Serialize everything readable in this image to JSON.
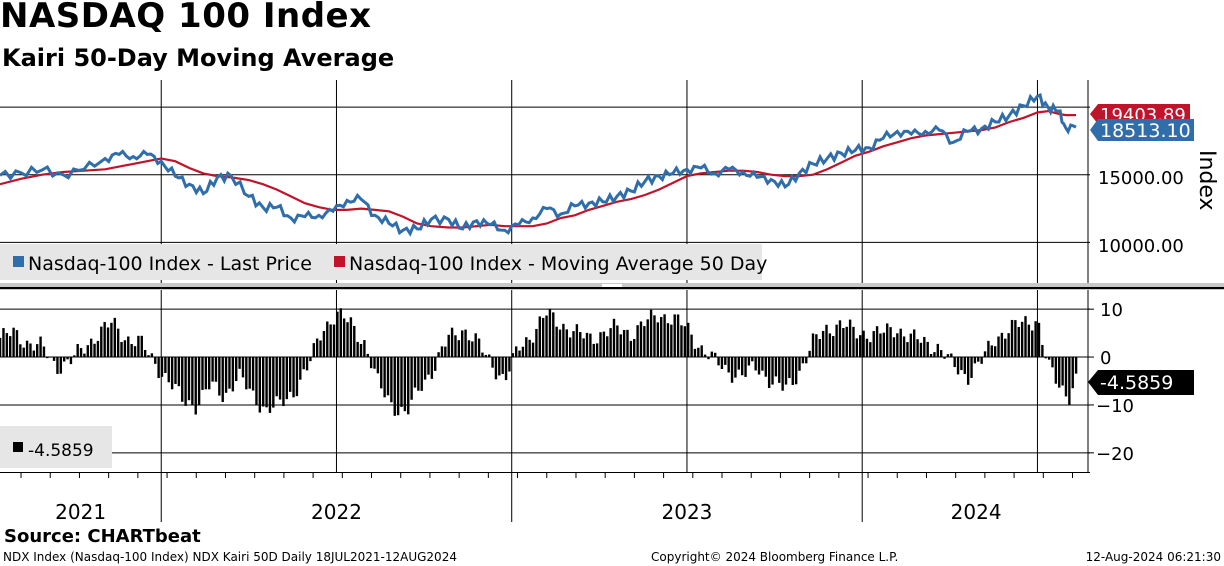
{
  "title": "NASDAQ 100 Index",
  "subtitle": "Kairi 50-Day Moving Average",
  "source": "Source: CHARTbeat",
  "footer": {
    "left": "NDX Index (Nasdaq-100 Index) NDX Kairi 50D  Daily 18JUL2021-12AUG2024",
    "middle": "Copyright© 2024 Bloomberg Finance L.P.",
    "right": "12-Aug-2024 06:21:30"
  },
  "colors": {
    "price": "#2f6eab",
    "ma": "#c0142a",
    "kairi": "#000000",
    "grid": "#000000",
    "legend_bg": "#e6e6e6"
  },
  "chart_data": [
    {
      "type": "line",
      "title": "NASDAQ 100 Index",
      "ylabel": "Index",
      "ylim": [
        7000,
        22000
      ],
      "y_ticks": [
        "10000.00",
        "15000.00"
      ],
      "x_labels": [
        "2021",
        "2022",
        "2023",
        "2024"
      ],
      "x_range": [
        2021.54,
        2024.61
      ],
      "legend": [
        "Nasdaq-100 Index - Last Price",
        "Nasdaq-100 Index - Moving Average 50 Day"
      ],
      "value_labels": {
        "ma": "19403.89",
        "price": "18513.10"
      },
      "series": [
        {
          "name": "Nasdaq-100 Index - Last Price",
          "x": [
            2021.54,
            2021.6,
            2021.66,
            2021.72,
            2021.78,
            2021.84,
            2021.88,
            2021.92,
            2021.96,
            2022.0,
            2022.04,
            2022.08,
            2022.12,
            2022.16,
            2022.2,
            2022.25,
            2022.29,
            2022.33,
            2022.37,
            2022.41,
            2022.45,
            2022.49,
            2022.53,
            2022.57,
            2022.61,
            2022.65,
            2022.69,
            2022.73,
            2022.77,
            2022.82,
            2022.86,
            2022.9,
            2022.94,
            2022.98,
            2023.02,
            2023.06,
            2023.1,
            2023.14,
            2023.18,
            2023.22,
            2023.26,
            2023.3,
            2023.34,
            2023.38,
            2023.42,
            2023.46,
            2023.5,
            2023.54,
            2023.58,
            2023.62,
            2023.66,
            2023.7,
            2023.74,
            2023.78,
            2023.82,
            2023.86,
            2023.9,
            2023.94,
            2023.98,
            2024.02,
            2024.06,
            2024.1,
            2024.14,
            2024.18,
            2024.22,
            2024.26,
            2024.3,
            2024.34,
            2024.38,
            2024.42,
            2024.46,
            2024.5,
            2024.53,
            2024.56,
            2024.58,
            2024.61
          ],
          "values": [
            14950,
            15150,
            15350,
            15000,
            15400,
            16200,
            16500,
            16350,
            16500,
            16000,
            14900,
            14300,
            13600,
            14800,
            14900,
            13400,
            12600,
            12600,
            11800,
            11900,
            12000,
            12300,
            13100,
            13200,
            12000,
            11400,
            10900,
            11000,
            11700,
            11700,
            11000,
            11600,
            11300,
            10900,
            11300,
            11800,
            12500,
            12100,
            12700,
            12900,
            13000,
            13400,
            13800,
            14500,
            14900,
            15100,
            15400,
            15500,
            15100,
            15400,
            15200,
            14800,
            14650,
            14100,
            15100,
            15800,
            16200,
            16600,
            16800,
            17000,
            17700,
            18200,
            18000,
            18200,
            18300,
            17400,
            18200,
            18400,
            18900,
            19400,
            20100,
            20800,
            20000,
            19700,
            18500,
            18513.1
          ]
        },
        {
          "name": "Nasdaq-100 Index - Moving Average 50 Day",
          "x": [
            2021.54,
            2021.6,
            2021.66,
            2021.72,
            2021.78,
            2021.84,
            2021.88,
            2021.92,
            2021.96,
            2022.0,
            2022.04,
            2022.08,
            2022.12,
            2022.16,
            2022.2,
            2022.25,
            2022.29,
            2022.33,
            2022.37,
            2022.41,
            2022.45,
            2022.49,
            2022.53,
            2022.57,
            2022.61,
            2022.65,
            2022.69,
            2022.73,
            2022.77,
            2022.82,
            2022.86,
            2022.9,
            2022.94,
            2022.98,
            2023.02,
            2023.06,
            2023.1,
            2023.14,
            2023.18,
            2023.22,
            2023.26,
            2023.3,
            2023.34,
            2023.38,
            2023.42,
            2023.46,
            2023.5,
            2023.54,
            2023.58,
            2023.62,
            2023.66,
            2023.7,
            2023.74,
            2023.78,
            2023.82,
            2023.86,
            2023.9,
            2023.94,
            2023.98,
            2024.02,
            2024.06,
            2024.1,
            2024.14,
            2024.18,
            2024.22,
            2024.26,
            2024.3,
            2024.34,
            2024.38,
            2024.42,
            2024.46,
            2024.5,
            2024.53,
            2024.56,
            2024.58,
            2024.61
          ],
          "values": [
            14300,
            14700,
            15000,
            15200,
            15300,
            15400,
            15600,
            15800,
            16000,
            16200,
            16000,
            15500,
            15100,
            14900,
            14800,
            14600,
            14300,
            13900,
            13400,
            12900,
            12600,
            12400,
            12400,
            12500,
            12400,
            12300,
            11900,
            11400,
            11200,
            11100,
            11100,
            11200,
            11300,
            11200,
            11200,
            11200,
            11400,
            11800,
            12000,
            12400,
            12700,
            13000,
            13200,
            13500,
            13900,
            14400,
            14900,
            15100,
            15200,
            15300,
            15300,
            15200,
            15000,
            14900,
            14900,
            15000,
            15400,
            15900,
            16400,
            16700,
            17100,
            17400,
            17700,
            17900,
            18000,
            18100,
            18200,
            18300,
            18500,
            18900,
            19200,
            19600,
            19700,
            19500,
            19403.89,
            19403.89
          ]
        }
      ]
    },
    {
      "type": "bar",
      "title": "Kairi 50-Day Moving Average",
      "ylim": [
        -24,
        14
      ],
      "y_ticks": [
        10,
        0,
        -10,
        -20
      ],
      "legend": [
        "-4.5859"
      ],
      "value_label": "-4.5859",
      "x": [
        2021.54,
        2021.58,
        2021.62,
        2021.66,
        2021.7,
        2021.74,
        2021.78,
        2021.82,
        2021.86,
        2021.9,
        2021.94,
        2021.98,
        2022.02,
        2022.06,
        2022.1,
        2022.14,
        2022.18,
        2022.22,
        2022.26,
        2022.3,
        2022.34,
        2022.38,
        2022.42,
        2022.46,
        2022.5,
        2022.54,
        2022.58,
        2022.62,
        2022.66,
        2022.7,
        2022.74,
        2022.78,
        2022.82,
        2022.86,
        2022.9,
        2022.94,
        2022.98,
        2023.02,
        2023.06,
        2023.1,
        2023.14,
        2023.18,
        2023.22,
        2023.26,
        2023.3,
        2023.34,
        2023.38,
        2023.42,
        2023.46,
        2023.5,
        2023.54,
        2023.58,
        2023.62,
        2023.66,
        2023.7,
        2023.74,
        2023.78,
        2023.82,
        2023.86,
        2023.9,
        2023.94,
        2023.98,
        2024.02,
        2024.06,
        2024.1,
        2024.14,
        2024.18,
        2024.22,
        2024.26,
        2024.3,
        2024.34,
        2024.38,
        2024.42,
        2024.46,
        2024.5,
        2024.53,
        2024.56,
        2024.59,
        2024.61
      ],
      "values": [
        4,
        5,
        3,
        2,
        -2,
        -1,
        2,
        5,
        7,
        4,
        3,
        -1,
        -5,
        -9,
        -10,
        -6,
        -8,
        -4,
        -8,
        -11,
        -10,
        -7,
        -2,
        6,
        9,
        7,
        3,
        -6,
        -10,
        -12,
        -6,
        -2,
        4,
        6,
        3,
        -1,
        -5,
        2,
        5,
        9,
        7,
        5,
        4,
        5,
        6,
        5,
        7,
        9,
        8,
        6,
        2,
        -1,
        -3,
        -4,
        -2,
        -5,
        -7,
        -3,
        3,
        6,
        7,
        5,
        5,
        5,
        6,
        4,
        3,
        2,
        -2,
        -4,
        -1,
        4,
        6,
        7,
        8,
        -2,
        -6,
        -8,
        -4.5859
      ]
    }
  ]
}
